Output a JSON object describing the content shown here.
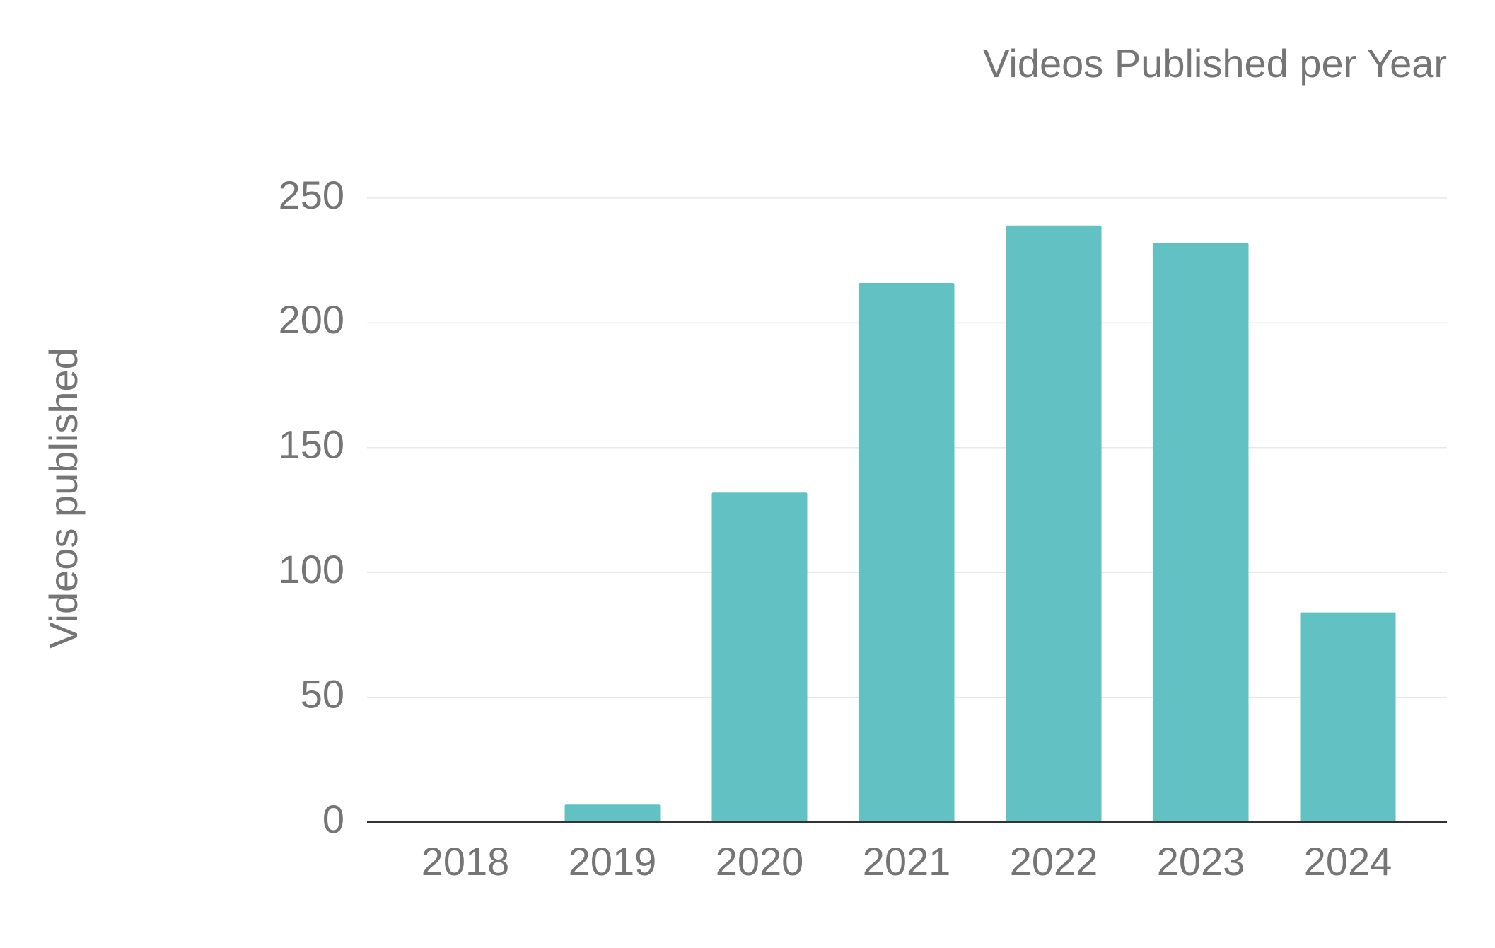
{
  "chart_data": {
    "type": "bar",
    "title": "Videos Published per Year",
    "y_label": "Videos published",
    "categories": [
      "2018",
      "2019",
      "2020",
      "2021",
      "2022",
      "2023",
      "2024"
    ],
    "values": [
      0,
      7,
      132,
      216,
      239,
      232,
      84
    ],
    "color": "#62c1c2",
    "ylim": [
      0,
      250
    ],
    "yticks": [
      0,
      50,
      100,
      150,
      200,
      250
    ],
    "grid": true
  }
}
